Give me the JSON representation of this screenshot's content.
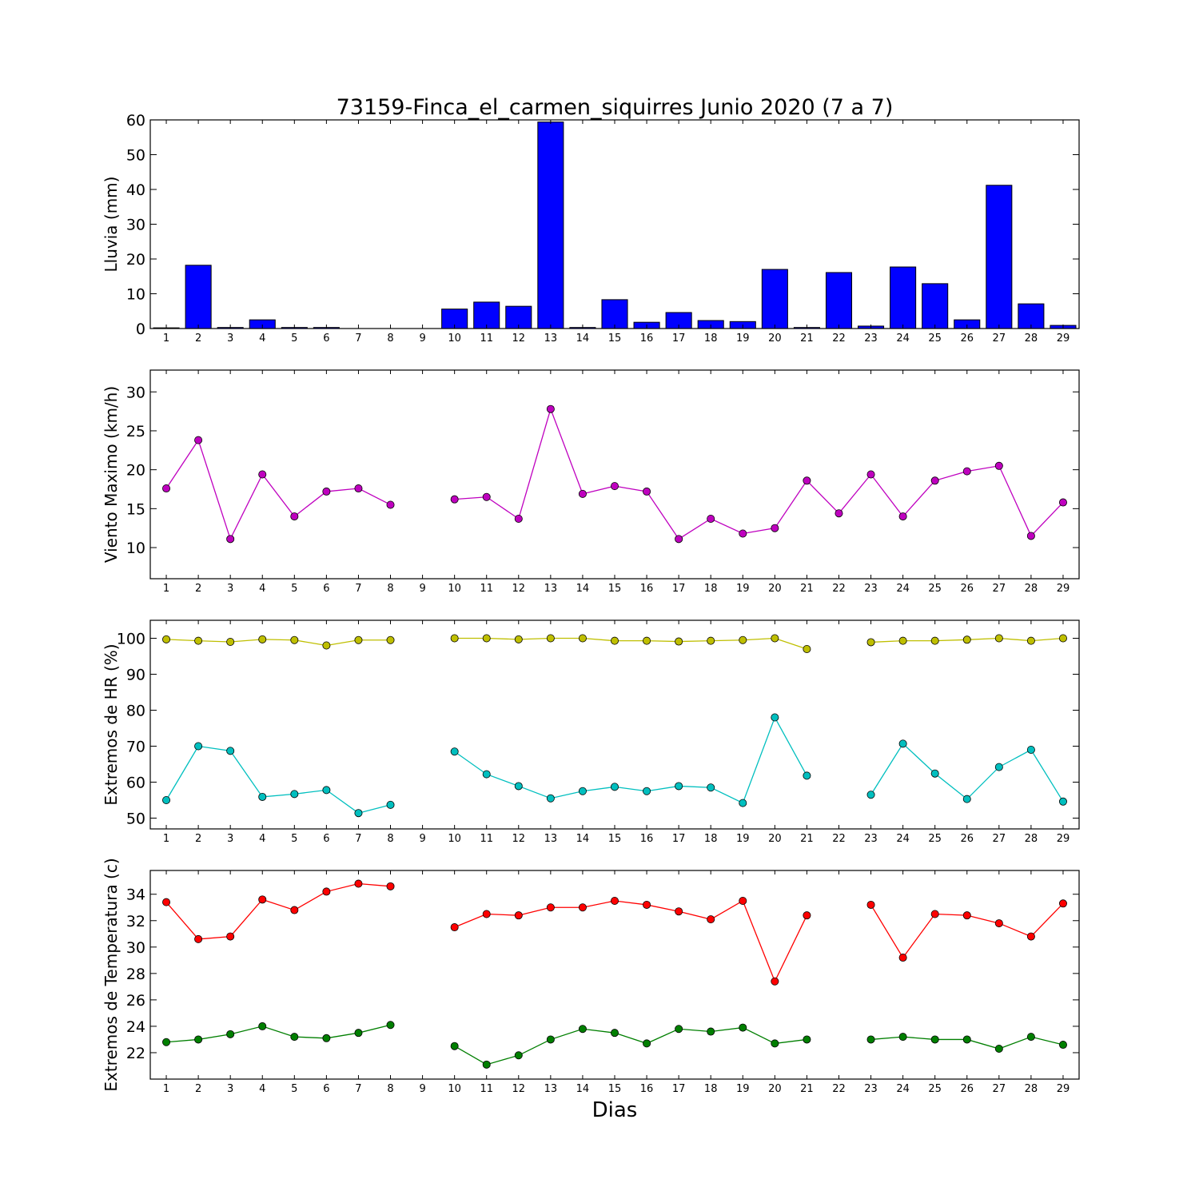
{
  "chart_data": {
    "title": "73159-Finca_el_carmen_siquirres Junio 2020  (7 a 7)",
    "xlabel": "Dias",
    "x": [
      1,
      2,
      3,
      4,
      5,
      6,
      7,
      8,
      9,
      10,
      11,
      12,
      13,
      14,
      15,
      16,
      17,
      18,
      19,
      20,
      21,
      22,
      23,
      24,
      25,
      26,
      27,
      28,
      29
    ],
    "x_tick_labels": [
      "1",
      "2",
      "3",
      "4",
      "5",
      "6",
      "7",
      "8",
      "9",
      "10",
      "11",
      "12",
      "13",
      "14",
      "15",
      "16",
      "17",
      "18",
      "19",
      "20",
      "21",
      "22",
      "23",
      "24",
      "25",
      "26",
      "27",
      "28",
      "29"
    ],
    "xlim": [
      0.5,
      29.5
    ],
    "panels": [
      {
        "type": "bar",
        "ylabel": "Lluvia (mm)",
        "ylim": [
          0,
          60
        ],
        "yticks": [
          0,
          10,
          20,
          30,
          40,
          50,
          60
        ],
        "grid": false,
        "series": [
          {
            "color": "#0000ff",
            "values": [
              0.2,
              18.2,
              0.3,
              2.5,
              0.3,
              0.3,
              0,
              0,
              0,
              5.6,
              7.6,
              6.4,
              59.4,
              0.3,
              8.3,
              1.8,
              4.6,
              2.3,
              2.0,
              17.0,
              0.3,
              16.1,
              0.7,
              17.7,
              12.9,
              2.5,
              41.2,
              7.1,
              0.9
            ]
          }
        ]
      },
      {
        "type": "line",
        "ylabel": "Viento Maximo (km/h)",
        "ylim": [
          6,
          32.8
        ],
        "yticks": [
          10,
          15,
          20,
          25,
          30
        ],
        "grid": false,
        "series": [
          {
            "color": "#bf00bf",
            "values": [
              17.6,
              23.8,
              11.1,
              19.4,
              14.0,
              17.2,
              17.6,
              15.5,
              null,
              16.2,
              16.5,
              13.7,
              27.8,
              16.9,
              17.9,
              17.2,
              11.1,
              13.7,
              11.8,
              12.5,
              18.6,
              14.4,
              19.4,
              14.0,
              18.6,
              19.8,
              20.5,
              11.5,
              15.8
            ]
          }
        ]
      },
      {
        "type": "line",
        "ylabel": "Extremos de HR (%)",
        "ylim": [
          47,
          105
        ],
        "yticks": [
          50,
          60,
          70,
          80,
          90,
          100
        ],
        "grid": false,
        "series": [
          {
            "color": "#bfbf00",
            "values": [
              99.7,
              99.3,
              99.0,
              99.7,
              99.5,
              98.0,
              99.5,
              99.5,
              null,
              100,
              100,
              99.7,
              100,
              100,
              99.3,
              99.3,
              99.1,
              99.3,
              99.5,
              100,
              97.0,
              null,
              98.9,
              99.3,
              99.3,
              99.6,
              100,
              99.3,
              100
            ]
          },
          {
            "color": "#00bfbf",
            "values": [
              55.0,
              70.0,
              68.7,
              55.9,
              56.7,
              57.8,
              51.4,
              53.7,
              null,
              68.5,
              62.2,
              58.9,
              55.5,
              57.5,
              58.7,
              57.5,
              58.9,
              58.5,
              54.2,
              78.0,
              61.8,
              null,
              56.5,
              70.7,
              62.4,
              55.3,
              64.2,
              69.0,
              54.6
            ]
          }
        ]
      },
      {
        "type": "line",
        "ylabel": "Extremos de Temperatura (c)",
        "ylim": [
          20,
          35.8
        ],
        "yticks": [
          22,
          24,
          26,
          28,
          30,
          32,
          34
        ],
        "grid": false,
        "series": [
          {
            "color": "#ff0000",
            "values": [
              33.4,
              30.6,
              30.8,
              33.6,
              32.8,
              34.2,
              34.8,
              34.6,
              null,
              31.5,
              32.5,
              32.4,
              33.0,
              33.0,
              33.5,
              33.2,
              32.7,
              32.1,
              33.5,
              27.4,
              32.4,
              null,
              33.2,
              29.2,
              32.5,
              32.4,
              31.8,
              30.8,
              33.3
            ]
          },
          {
            "color": "#007f00",
            "values": [
              22.8,
              23.0,
              23.4,
              24.0,
              23.2,
              23.1,
              23.5,
              24.1,
              null,
              22.5,
              21.1,
              21.8,
              23.0,
              23.8,
              23.5,
              22.7,
              23.8,
              23.6,
              23.9,
              22.7,
              23.0,
              null,
              23.0,
              23.2,
              23.0,
              23.0,
              22.3,
              23.2,
              22.6
            ]
          }
        ]
      }
    ]
  }
}
